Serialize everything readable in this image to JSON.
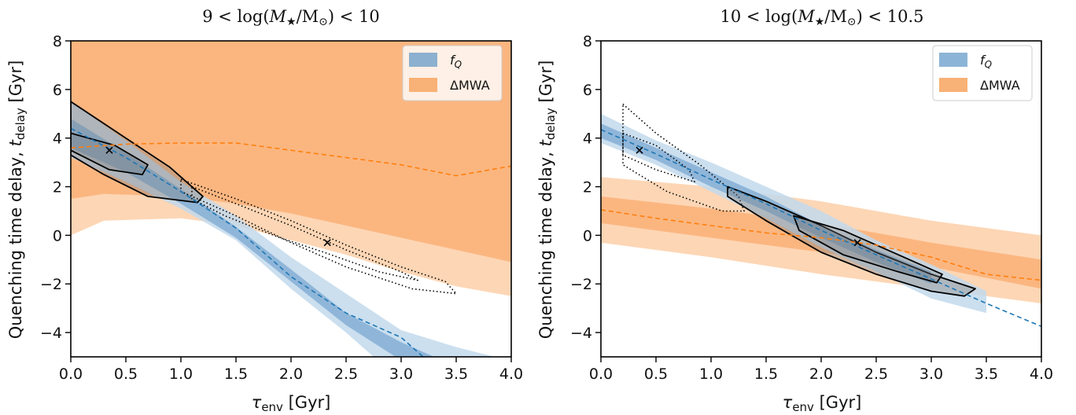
{
  "chart_data": [
    {
      "type": "area",
      "title_parts": [
        "9 < log(",
        "M",
        "★",
        "/M",
        "⊙",
        ") < 10"
      ],
      "xlabel_parts": [
        "τ",
        "env",
        " [Gyr]"
      ],
      "ylabel_parts": [
        "Quenching time delay, ",
        "t",
        "delay",
        " [Gyr]"
      ],
      "xlim": [
        0,
        4
      ],
      "ylim": [
        -5,
        8
      ],
      "xticks": [
        "0.0",
        "0.5",
        "1.0",
        "1.5",
        "2.0",
        "2.5",
        "3.0",
        "3.5",
        "4.0"
      ],
      "yticks": [
        "−4",
        "−2",
        "0",
        "2",
        "4",
        "6",
        "8"
      ],
      "legend": {
        "position": "top-right",
        "entries": [
          {
            "label_parts": [
              "f",
              "Q"
            ],
            "color": "#5b94c4"
          },
          {
            "label": "ΔMWA",
            "color": "#f8b176"
          }
        ]
      },
      "colors": {
        "fq_outer": "#c2d9ec",
        "fq_inner": "#7fabd3",
        "fq_line": "#1f77b4",
        "mwa_outer": "#fdd6b5",
        "mwa_inner": "#fbb680",
        "mwa_line": "#ff7f0e",
        "contour": "#000000"
      },
      "series": [
        {
          "name": "ΔMWA",
          "band": "outer",
          "upper": [
            [
              0,
              8
            ],
            [
              4,
              8
            ]
          ],
          "lower": [
            [
              0,
              0
            ],
            [
              0.3,
              0.6
            ],
            [
              1.0,
              0.7
            ],
            [
              1.5,
              0.4
            ],
            [
              2.0,
              -0.2
            ],
            [
              2.5,
              -0.8
            ],
            [
              3.0,
              -1.5
            ],
            [
              3.5,
              -2.1
            ],
            [
              4.0,
              -2.5
            ]
          ]
        },
        {
          "name": "ΔMWA",
          "band": "inner",
          "upper": [
            [
              0,
              8
            ],
            [
              4,
              8
            ]
          ],
          "lower": [
            [
              0,
              1.5
            ],
            [
              0.3,
              1.7
            ],
            [
              1.0,
              1.6
            ],
            [
              1.5,
              1.3
            ],
            [
              2.0,
              0.9
            ],
            [
              2.5,
              0.4
            ],
            [
              3.0,
              -0.1
            ],
            [
              3.5,
              -0.6
            ],
            [
              4.0,
              -1.1
            ]
          ]
        },
        {
          "name": "ΔMWA",
          "band": "median",
          "line": [
            [
              0,
              3.6
            ],
            [
              0.5,
              3.75
            ],
            [
              1.0,
              3.8
            ],
            [
              1.5,
              3.8
            ],
            [
              2.0,
              3.5
            ],
            [
              2.5,
              3.2
            ],
            [
              3.0,
              2.9
            ],
            [
              3.5,
              2.45
            ],
            [
              4.0,
              2.85
            ]
          ]
        },
        {
          "name": "f_Q",
          "band": "outer",
          "upper": [
            [
              0,
              5.5
            ],
            [
              0.5,
              3.9
            ],
            [
              1.0,
              2.2
            ],
            [
              1.5,
              0.8
            ],
            [
              2.0,
              -0.9
            ],
            [
              2.5,
              -2.4
            ],
            [
              3.0,
              -3.9
            ],
            [
              3.5,
              -4.6
            ],
            [
              3.85,
              -5
            ]
          ],
          "lower": [
            [
              0,
              3.2
            ],
            [
              0.5,
              2.2
            ],
            [
              1.0,
              1.1
            ],
            [
              1.5,
              -0.2
            ],
            [
              2.0,
              -2.2
            ],
            [
              2.5,
              -4.0
            ],
            [
              2.75,
              -5
            ]
          ]
        },
        {
          "name": "f_Q",
          "band": "inner",
          "upper": [
            [
              0,
              4.8
            ],
            [
              0.5,
              3.4
            ],
            [
              1.0,
              1.9
            ],
            [
              1.5,
              0.35
            ],
            [
              2.0,
              -1.4
            ],
            [
              2.5,
              -3.2
            ],
            [
              3.0,
              -4.4
            ],
            [
              3.3,
              -5
            ]
          ],
          "lower": [
            [
              0,
              3.6
            ],
            [
              0.5,
              2.6
            ],
            [
              1.0,
              1.3
            ],
            [
              1.5,
              -0.1
            ],
            [
              2.0,
              -1.9
            ],
            [
              2.5,
              -3.7
            ],
            [
              2.95,
              -5
            ]
          ]
        },
        {
          "name": "f_Q",
          "band": "median",
          "line": [
            [
              0,
              4.4
            ],
            [
              0.5,
              3.2
            ],
            [
              1.0,
              1.8
            ],
            [
              1.5,
              0.3
            ],
            [
              2.0,
              -1.7
            ],
            [
              2.5,
              -3.2
            ],
            [
              3.0,
              -4.2
            ],
            [
              3.2,
              -5
            ]
          ]
        }
      ],
      "contours": [
        {
          "level": "outer",
          "style": "solid",
          "points": [
            [
              0,
              5.5
            ],
            [
              0.5,
              4.0
            ],
            [
              0.9,
              2.8
            ],
            [
              1.2,
              1.6
            ],
            [
              1.15,
              1.35
            ],
            [
              0.7,
              1.6
            ],
            [
              0.3,
              2.5
            ],
            [
              0,
              3.3
            ]
          ]
        },
        {
          "level": "inner",
          "style": "solid",
          "points": [
            [
              0,
              4.2
            ],
            [
              0.4,
              3.7
            ],
            [
              0.7,
              2.9
            ],
            [
              0.65,
              2.5
            ],
            [
              0.35,
              2.7
            ],
            [
              0,
              3.5
            ]
          ]
        },
        {
          "level": "outer",
          "style": "dotted",
          "points": [
            [
              1.0,
              2.3
            ],
            [
              1.5,
              1.5
            ],
            [
              2.0,
              0.6
            ],
            [
              2.5,
              -0.4
            ],
            [
              3.0,
              -1.3
            ],
            [
              3.4,
              -1.9
            ],
            [
              3.5,
              -2.4
            ],
            [
              3.1,
              -2.2
            ],
            [
              2.5,
              -1.3
            ],
            [
              2.0,
              -0.3
            ],
            [
              1.5,
              0.8
            ],
            [
              1.0,
              1.8
            ]
          ]
        },
        {
          "level": "inner",
          "style": "dotted",
          "points": [
            [
              1.1,
              2.0
            ],
            [
              1.5,
              1.3
            ],
            [
              2.0,
              0.4
            ],
            [
              2.5,
              -0.6
            ],
            [
              3.0,
              -1.5
            ],
            [
              3.15,
              -1.85
            ],
            [
              2.8,
              -1.5
            ],
            [
              2.3,
              -0.7
            ],
            [
              1.9,
              -0.1
            ],
            [
              1.4,
              0.8
            ],
            [
              1.1,
              1.5
            ]
          ]
        }
      ],
      "markers": [
        {
          "x": 0.35,
          "y": 3.5
        },
        {
          "x": 2.33,
          "y": -0.3
        }
      ]
    },
    {
      "type": "area",
      "title_parts": [
        "10 < log(",
        "M",
        "★",
        "/M",
        "⊙",
        ") < 10.5"
      ],
      "xlabel_parts": [
        "τ",
        "env",
        " [Gyr]"
      ],
      "ylabel_parts": [
        "Quenching time delay, ",
        "t",
        "delay",
        " [Gyr]"
      ],
      "xlim": [
        0,
        4
      ],
      "ylim": [
        -5,
        8
      ],
      "xticks": [
        "0.0",
        "0.5",
        "1.0",
        "1.5",
        "2.0",
        "2.5",
        "3.0",
        "3.5",
        "4.0"
      ],
      "yticks": [
        "−4",
        "−2",
        "0",
        "2",
        "4",
        "6",
        "8"
      ],
      "legend": {
        "position": "top-right",
        "entries": [
          {
            "label_parts": [
              "f",
              "Q"
            ],
            "color": "#5b94c4"
          },
          {
            "label": "ΔMWA",
            "color": "#f8b176"
          }
        ]
      },
      "colors": {
        "fq_outer": "#c2d9ec",
        "fq_inner": "#7fabd3",
        "fq_line": "#1f77b4",
        "mwa_outer": "#fdd6b5",
        "mwa_inner": "#fbb680",
        "mwa_line": "#ff7f0e",
        "contour": "#000000"
      },
      "series": [
        {
          "name": "ΔMWA",
          "band": "outer",
          "upper": [
            [
              0,
              2.4
            ],
            [
              1.0,
              2.0
            ],
            [
              2.0,
              1.4
            ],
            [
              3.0,
              0.6
            ],
            [
              4.0,
              0.0
            ]
          ],
          "lower": [
            [
              0,
              -0.3
            ],
            [
              1.0,
              -0.9
            ],
            [
              2.0,
              -1.6
            ],
            [
              3.0,
              -2.2
            ],
            [
              4.0,
              -2.8
            ]
          ]
        },
        {
          "name": "ΔMWA",
          "band": "inner",
          "upper": [
            [
              0,
              1.6
            ],
            [
              1.0,
              1.1
            ],
            [
              2.0,
              0.5
            ],
            [
              3.0,
              -0.3
            ],
            [
              4.0,
              -1.0
            ]
          ],
          "lower": [
            [
              0,
              0.5
            ],
            [
              1.0,
              -0.1
            ],
            [
              2.0,
              -0.7
            ],
            [
              3.0,
              -1.3
            ],
            [
              4.0,
              -2.2
            ]
          ]
        },
        {
          "name": "ΔMWA",
          "band": "median",
          "line": [
            [
              0,
              1.05
            ],
            [
              0.5,
              0.7
            ],
            [
              1.0,
              0.4
            ],
            [
              1.5,
              0.1
            ],
            [
              2.0,
              -0.1
            ],
            [
              2.5,
              -0.4
            ],
            [
              3.0,
              -0.9
            ],
            [
              3.5,
              -1.6
            ],
            [
              4.0,
              -1.85
            ]
          ]
        },
        {
          "name": "f_Q",
          "band": "outer",
          "upper": [
            [
              0,
              5.0
            ],
            [
              0.5,
              3.9
            ],
            [
              1.0,
              3.0
            ],
            [
              1.5,
              2.0
            ],
            [
              2.0,
              1.0
            ],
            [
              2.5,
              -0.2
            ],
            [
              3.0,
              -1.2
            ],
            [
              3.5,
              -2.3
            ]
          ],
          "lower": [
            [
              0,
              3.8
            ],
            [
              0.5,
              2.9
            ],
            [
              1.0,
              1.8
            ],
            [
              1.5,
              0.7
            ],
            [
              2.0,
              -0.5
            ],
            [
              2.5,
              -1.5
            ],
            [
              3.0,
              -2.6
            ],
            [
              3.5,
              -3.2
            ]
          ]
        },
        {
          "name": "f_Q",
          "band": "inner",
          "upper": [
            [
              0,
              4.6
            ],
            [
              0.5,
              3.6
            ],
            [
              1.0,
              2.6
            ],
            [
              1.5,
              1.6
            ],
            [
              2.0,
              0.4
            ],
            [
              2.5,
              -0.6
            ],
            [
              3.0,
              -1.5
            ]
          ],
          "lower": [
            [
              0,
              4.0
            ],
            [
              0.5,
              3.1
            ],
            [
              1.0,
              2.0
            ],
            [
              1.5,
              1.0
            ],
            [
              2.0,
              -0.1
            ],
            [
              2.5,
              -1.1
            ],
            [
              3.0,
              -2.0
            ]
          ]
        },
        {
          "name": "f_Q",
          "band": "median",
          "line": [
            [
              0,
              4.35
            ],
            [
              0.5,
              3.35
            ],
            [
              1.0,
              2.3
            ],
            [
              1.5,
              1.3
            ],
            [
              2.0,
              0.2
            ],
            [
              2.5,
              -0.8
            ],
            [
              3.0,
              -1.8
            ],
            [
              3.5,
              -2.8
            ],
            [
              4.0,
              -3.75
            ]
          ]
        }
      ],
      "contours": [
        {
          "level": "outer",
          "style": "dotted",
          "points": [
            [
              0.2,
              5.4
            ],
            [
              0.5,
              4.2
            ],
            [
              0.9,
              2.9
            ],
            [
              1.25,
              1.6
            ],
            [
              1.3,
              1.0
            ],
            [
              1.1,
              1.0
            ],
            [
              0.6,
              1.8
            ],
            [
              0.2,
              2.9
            ]
          ]
        },
        {
          "level": "inner",
          "style": "dotted",
          "points": [
            [
              0.2,
              4.2
            ],
            [
              0.5,
              3.7
            ],
            [
              0.8,
              2.7
            ],
            [
              0.85,
              2.2
            ],
            [
              0.5,
              2.7
            ],
            [
              0.2,
              3.3
            ]
          ]
        },
        {
          "level": "outer",
          "style": "solid",
          "points": [
            [
              1.15,
              2.0
            ],
            [
              1.5,
              1.4
            ],
            [
              2.0,
              0.4
            ],
            [
              2.5,
              -0.7
            ],
            [
              3.0,
              -1.6
            ],
            [
              3.4,
              -2.2
            ],
            [
              3.3,
              -2.5
            ],
            [
              3.0,
              -2.3
            ],
            [
              2.5,
              -1.6
            ],
            [
              2.0,
              -0.7
            ],
            [
              1.5,
              0.6
            ],
            [
              1.15,
              1.6
            ]
          ]
        },
        {
          "level": "inner",
          "style": "solid",
          "points": [
            [
              1.75,
              0.8
            ],
            [
              2.2,
              0.2
            ],
            [
              2.7,
              -0.8
            ],
            [
              3.1,
              -1.6
            ],
            [
              3.05,
              -1.95
            ],
            [
              2.7,
              -1.5
            ],
            [
              2.2,
              -0.8
            ],
            [
              1.8,
              0.2
            ]
          ]
        }
      ],
      "markers": [
        {
          "x": 0.35,
          "y": 3.5
        },
        {
          "x": 2.33,
          "y": -0.3
        }
      ]
    }
  ]
}
